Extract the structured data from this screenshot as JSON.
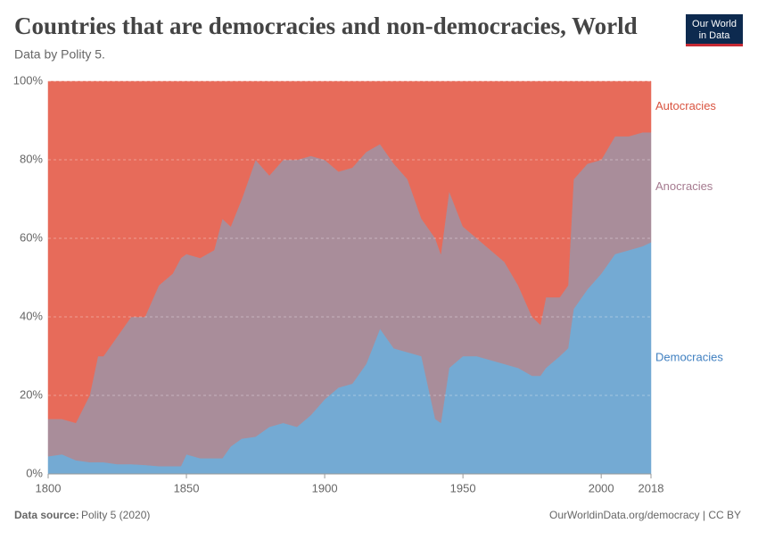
{
  "chart_data": {
    "type": "stacked-area",
    "title": "Countries that are democracies and non-democracies, World",
    "subtitle": "Data by Polity 5.",
    "logo": [
      "Our World",
      "in Data"
    ],
    "source_label": "Data source:",
    "source": "Polity 5 (2020)",
    "credit": "OurWorldinData.org/democracy | CC BY",
    "x": [
      1800,
      1805,
      1810,
      1815,
      1818,
      1820,
      1825,
      1830,
      1835,
      1840,
      1845,
      1848,
      1850,
      1855,
      1860,
      1863,
      1866,
      1870,
      1875,
      1880,
      1885,
      1890,
      1895,
      1900,
      1905,
      1910,
      1915,
      1920,
      1925,
      1930,
      1935,
      1940,
      1942,
      1945,
      1950,
      1955,
      1960,
      1965,
      1970,
      1975,
      1978,
      1980,
      1985,
      1988,
      1990,
      1995,
      2000,
      2005,
      2010,
      2015,
      2018
    ],
    "series": [
      {
        "name": "Democracies",
        "color": "#74aad3",
        "label_color": "#3f7fc0",
        "values": [
          4.5,
          5,
          3.5,
          3,
          3,
          3,
          2.5,
          2.5,
          2.3,
          2,
          2,
          2,
          5,
          4,
          4,
          4,
          7,
          9,
          9.5,
          12,
          13,
          12,
          15,
          19,
          22,
          23,
          28,
          37,
          32,
          31,
          30,
          14,
          13,
          27,
          30,
          30,
          29,
          28,
          27,
          25,
          25,
          27,
          30,
          32,
          42,
          47,
          51,
          56,
          57,
          58,
          59
        ]
      },
      {
        "name": "Anocracies",
        "color": "#a98d9a",
        "label_color": "#a57a8f",
        "values": [
          9.5,
          9,
          9.5,
          17,
          27,
          27,
          32.5,
          37.5,
          37.7,
          46,
          49,
          53,
          51,
          51,
          53,
          61,
          56,
          61,
          70.5,
          64,
          67,
          68,
          66,
          61,
          55,
          55,
          54,
          47,
          47,
          44,
          35,
          46,
          43,
          45,
          33,
          30,
          28,
          26,
          21,
          15,
          13,
          18,
          15,
          16,
          33,
          32,
          29,
          30,
          29,
          29,
          28
        ]
      },
      {
        "name": "Autocracies",
        "color": "#e76b5a",
        "label_color": "#d9533f",
        "values": [
          86,
          86,
          87,
          80,
          70,
          70,
          65,
          60,
          60,
          52,
          49,
          45,
          44,
          45,
          43,
          35,
          37,
          30,
          20,
          24,
          20,
          20,
          19,
          20,
          23,
          22,
          18,
          16,
          21,
          25,
          35,
          40,
          44,
          28,
          37,
          40,
          43,
          46,
          52,
          60,
          62,
          55,
          55,
          52,
          25,
          21,
          20,
          14,
          14,
          13,
          13
        ]
      }
    ],
    "xlim": [
      1800,
      2018
    ],
    "xticks": [
      1800,
      1850,
      1900,
      1950,
      2000,
      2018
    ],
    "ylim": [
      0,
      100
    ],
    "yticks": [
      {
        "value": 0,
        "label": "0%"
      },
      {
        "value": 20,
        "label": "20%"
      },
      {
        "value": 40,
        "label": "40%"
      },
      {
        "value": 60,
        "label": "60%"
      },
      {
        "value": 80,
        "label": "80%"
      },
      {
        "value": 100,
        "label": "100%"
      }
    ],
    "grid": true
  }
}
